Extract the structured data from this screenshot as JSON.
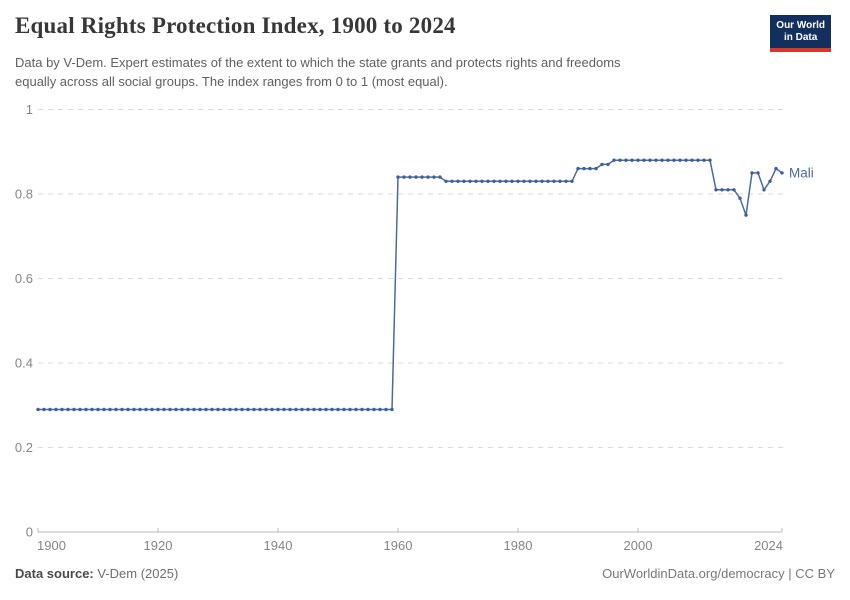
{
  "header": {
    "title": "Equal Rights Protection Index, 1900 to 2024",
    "subtitle_line1": "Data by V-Dem. Expert estimates of the extent to which the state grants and protects rights and freedoms",
    "subtitle_line2": "equally across all social groups. The index ranges from 0 to 1 (most equal).",
    "logo": {
      "line1": "Our World",
      "line2": "in Data",
      "bg_color": "#132f5e",
      "accent_color": "#dd352c"
    }
  },
  "chart_data": {
    "type": "line",
    "title": "Equal Rights Protection Index, 1900 to 2024",
    "xlabel": "",
    "ylabel": "",
    "xlim": [
      1900,
      2024
    ],
    "ylim": [
      0,
      1
    ],
    "xticks": [
      1900,
      1920,
      1940,
      1960,
      1980,
      2000,
      2024
    ],
    "yticks": [
      0,
      0.2,
      0.4,
      0.6,
      0.8,
      1
    ],
    "grid": "horizontal-dashed",
    "legend_position": "end-of-line-label",
    "colors": {
      "line": "#4c6a9e",
      "point": "#3f5f99",
      "series_label": "#4c6a9e",
      "gridline": "#dadada",
      "axis": "#b8b8b8",
      "tick_label": "#858585"
    },
    "series": [
      {
        "name": "Mali",
        "start_year": 1900,
        "end_year": 2024,
        "values": [
          0.29,
          0.29,
          0.29,
          0.29,
          0.29,
          0.29,
          0.29,
          0.29,
          0.29,
          0.29,
          0.29,
          0.29,
          0.29,
          0.29,
          0.29,
          0.29,
          0.29,
          0.29,
          0.29,
          0.29,
          0.29,
          0.29,
          0.29,
          0.29,
          0.29,
          0.29,
          0.29,
          0.29,
          0.29,
          0.29,
          0.29,
          0.29,
          0.29,
          0.29,
          0.29,
          0.29,
          0.29,
          0.29,
          0.29,
          0.29,
          0.29,
          0.29,
          0.29,
          0.29,
          0.29,
          0.29,
          0.29,
          0.29,
          0.29,
          0.29,
          0.29,
          0.29,
          0.29,
          0.29,
          0.29,
          0.29,
          0.29,
          0.29,
          0.29,
          0.29,
          0.84,
          0.84,
          0.84,
          0.84,
          0.84,
          0.84,
          0.84,
          0.84,
          0.83,
          0.83,
          0.83,
          0.83,
          0.83,
          0.83,
          0.83,
          0.83,
          0.83,
          0.83,
          0.83,
          0.83,
          0.83,
          0.83,
          0.83,
          0.83,
          0.83,
          0.83,
          0.83,
          0.83,
          0.83,
          0.83,
          0.86,
          0.86,
          0.86,
          0.86,
          0.87,
          0.87,
          0.88,
          0.88,
          0.88,
          0.88,
          0.88,
          0.88,
          0.88,
          0.88,
          0.88,
          0.88,
          0.88,
          0.88,
          0.88,
          0.88,
          0.88,
          0.88,
          0.88,
          0.81,
          0.81,
          0.81,
          0.81,
          0.79,
          0.75,
          0.85,
          0.85,
          0.81,
          0.83,
          0.86,
          0.85
        ]
      }
    ]
  },
  "footer": {
    "source_label": "Data source:",
    "source_value": "V-Dem (2025)",
    "right_text": "OurWorldinData.org/democracy | CC BY"
  }
}
